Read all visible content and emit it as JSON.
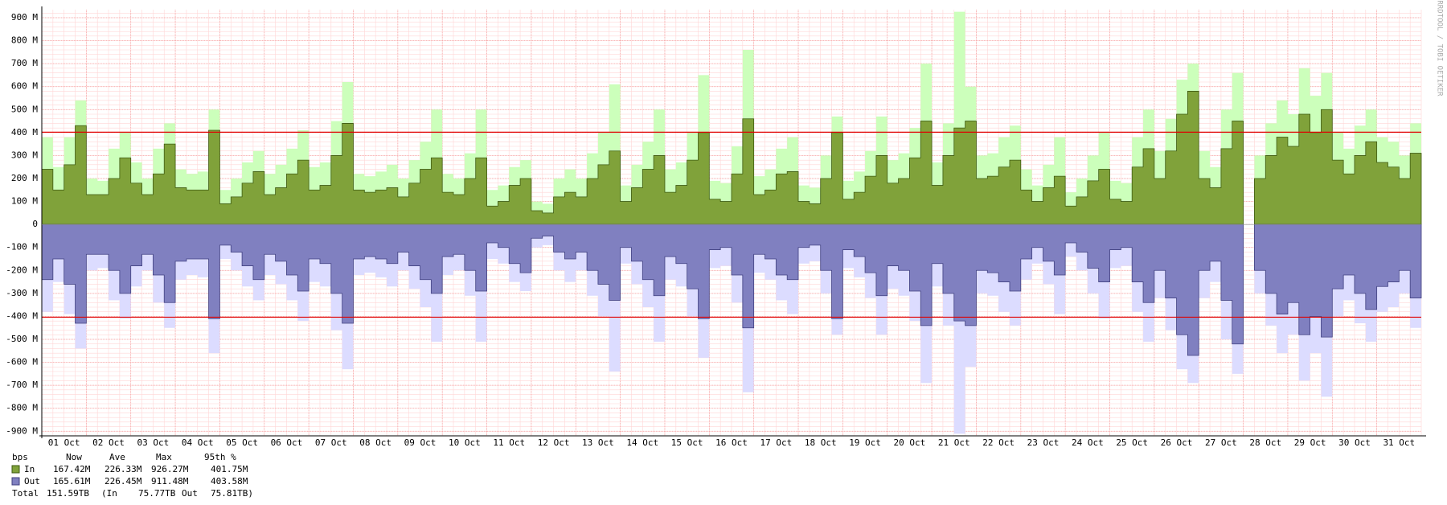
{
  "chart_data": {
    "type": "area",
    "categories": [
      "01 Oct",
      "02 Oct",
      "03 Oct",
      "04 Oct",
      "05 Oct",
      "06 Oct",
      "07 Oct",
      "08 Oct",
      "09 Oct",
      "10 Oct",
      "11 Oct",
      "12 Oct",
      "13 Oct",
      "14 Oct",
      "15 Oct",
      "16 Oct",
      "17 Oct",
      "18 Oct",
      "19 Oct",
      "20 Oct",
      "21 Oct",
      "22 Oct",
      "23 Oct",
      "24 Oct",
      "25 Oct",
      "26 Oct",
      "27 Oct",
      "28 Oct",
      "29 Oct",
      "30 Oct",
      "31 Oct"
    ],
    "ylim": [
      -920,
      935
    ],
    "yticks": [
      {
        "value": -900,
        "label": "-900 M"
      },
      {
        "value": -800,
        "label": "-800 M"
      },
      {
        "value": -700,
        "label": "-700 M"
      },
      {
        "value": -600,
        "label": "-600 M"
      },
      {
        "value": -500,
        "label": "-500 M"
      },
      {
        "value": -400,
        "label": "-400 M"
      },
      {
        "value": -300,
        "label": "-300 M"
      },
      {
        "value": -200,
        "label": "-200 M"
      },
      {
        "value": -100,
        "label": "-100 M"
      },
      0,
      {
        "value": 100,
        "label": "100 M"
      },
      {
        "value": 200,
        "label": "200 M"
      },
      {
        "value": 300,
        "label": "300 M"
      },
      {
        "value": 400,
        "label": "400 M"
      },
      {
        "value": 500,
        "label": "500 M"
      },
      {
        "value": 600,
        "label": "600 M"
      },
      {
        "value": 700,
        "label": "700 M"
      },
      {
        "value": 800,
        "label": "800 M"
      },
      {
        "value": 900,
        "label": "900 M"
      }
    ],
    "grid": true,
    "series": [
      {
        "color": "#ccffbb",
        "values": [
          [
            380,
            250,
            380,
            540
          ],
          [
            200,
            190,
            330,
            400
          ],
          [
            270,
            200,
            330,
            440
          ],
          [
            240,
            220,
            230,
            500
          ],
          [
            150,
            200,
            270,
            320
          ],
          [
            220,
            260,
            330,
            410
          ],
          [
            250,
            270,
            450,
            620
          ],
          [
            220,
            210,
            230,
            260
          ],
          [
            200,
            280,
            360,
            500
          ],
          [
            220,
            200,
            310,
            500
          ],
          [
            150,
            170,
            250,
            280
          ],
          [
            100,
            90,
            200,
            240
          ],
          [
            200,
            310,
            400,
            610
          ],
          [
            170,
            260,
            360,
            500
          ],
          [
            240,
            270,
            400,
            650
          ],
          [
            190,
            180,
            340,
            760
          ],
          [
            210,
            240,
            330,
            380
          ],
          [
            170,
            160,
            300,
            470
          ],
          [
            190,
            230,
            320,
            470
          ],
          [
            280,
            310,
            420,
            700
          ],
          [
            270,
            440,
            926,
            600
          ],
          [
            300,
            310,
            380,
            430
          ],
          [
            240,
            170,
            260,
            380
          ],
          [
            140,
            200,
            300,
            400
          ],
          [
            190,
            180,
            380,
            500
          ],
          [
            320,
            460,
            630,
            700
          ],
          [
            320,
            250,
            500,
            660
          ],
          [
            null,
            300,
            440,
            540
          ],
          [
            480,
            680,
            560,
            660
          ],
          [
            400,
            330,
            430,
            500
          ],
          [
            380,
            360,
            300,
            440
          ]
        ]
      },
      {
        "name": "In",
        "color": "#80a23a",
        "stroke": "#3d5a10",
        "values": [
          [
            240,
            150,
            260,
            430
          ],
          [
            130,
            130,
            200,
            290
          ],
          [
            180,
            130,
            220,
            350
          ],
          [
            160,
            150,
            150,
            410
          ],
          [
            90,
            120,
            180,
            230
          ],
          [
            130,
            160,
            220,
            280
          ],
          [
            150,
            170,
            300,
            440
          ],
          [
            150,
            140,
            150,
            160
          ],
          [
            120,
            180,
            240,
            290
          ],
          [
            140,
            130,
            200,
            290
          ],
          [
            80,
            100,
            170,
            200
          ],
          [
            60,
            50,
            120,
            140
          ],
          [
            120,
            200,
            260,
            320
          ],
          [
            100,
            160,
            240,
            300
          ],
          [
            140,
            170,
            280,
            400
          ],
          [
            110,
            100,
            220,
            460
          ],
          [
            130,
            150,
            220,
            230
          ],
          [
            100,
            90,
            200,
            400
          ],
          [
            110,
            140,
            210,
            300
          ],
          [
            180,
            200,
            290,
            450
          ],
          [
            170,
            300,
            420,
            450
          ],
          [
            200,
            210,
            250,
            280
          ],
          [
            150,
            100,
            160,
            210
          ],
          [
            80,
            120,
            190,
            240
          ],
          [
            110,
            100,
            250,
            330
          ],
          [
            200,
            320,
            480,
            580
          ],
          [
            200,
            160,
            330,
            450
          ],
          [
            null,
            200,
            300,
            380
          ],
          [
            340,
            480,
            400,
            500
          ],
          [
            280,
            220,
            300,
            360
          ],
          [
            270,
            250,
            200,
            310
          ]
        ],
        "stats": [
          "167.42M",
          "226.33M",
          "926.27M",
          "401.75M"
        ],
        "p95_line": 401.75
      },
      {
        "color": "#dcdcff",
        "values": [
          [
            -380,
            -250,
            -390,
            -540
          ],
          [
            -200,
            -190,
            -330,
            -410
          ],
          [
            -270,
            -200,
            -340,
            -450
          ],
          [
            -240,
            -220,
            -230,
            -560
          ],
          [
            -150,
            -200,
            -270,
            -330
          ],
          [
            -220,
            -260,
            -330,
            -420
          ],
          [
            -250,
            -270,
            -460,
            -630
          ],
          [
            -220,
            -210,
            -230,
            -270
          ],
          [
            -200,
            -280,
            -360,
            -510
          ],
          [
            -220,
            -200,
            -310,
            -510
          ],
          [
            -150,
            -170,
            -250,
            -290
          ],
          [
            -100,
            -90,
            -200,
            -250
          ],
          [
            -200,
            -310,
            -400,
            -640
          ],
          [
            -170,
            -260,
            -360,
            -510
          ],
          [
            -240,
            -270,
            -400,
            -580
          ],
          [
            -190,
            -180,
            -340,
            -730
          ],
          [
            -210,
            -240,
            -330,
            -390
          ],
          [
            -170,
            -160,
            -300,
            -480
          ],
          [
            -190,
            -230,
            -320,
            -480
          ],
          [
            -280,
            -310,
            -420,
            -690
          ],
          [
            -270,
            -440,
            -911,
            -620
          ],
          [
            -300,
            -310,
            -380,
            -440
          ],
          [
            -240,
            -170,
            -260,
            -390
          ],
          [
            -140,
            -200,
            -300,
            -410
          ],
          [
            -190,
            -180,
            -380,
            -510
          ],
          [
            -320,
            -460,
            -630,
            -690
          ],
          [
            -320,
            -250,
            -500,
            -650
          ],
          [
            null,
            -300,
            -440,
            -560
          ],
          [
            -480,
            -680,
            -560,
            -750
          ],
          [
            -400,
            -330,
            -430,
            -510
          ],
          [
            -380,
            -360,
            -300,
            -450
          ]
        ]
      },
      {
        "name": "Out",
        "color": "#8080c0",
        "stroke": "#404080",
        "values": [
          [
            -240,
            -150,
            -260,
            -430
          ],
          [
            -130,
            -130,
            -200,
            -300
          ],
          [
            -180,
            -130,
            -220,
            -340
          ],
          [
            -160,
            -150,
            -150,
            -410
          ],
          [
            -90,
            -120,
            -180,
            -240
          ],
          [
            -130,
            -160,
            -220,
            -290
          ],
          [
            -150,
            -170,
            -300,
            -430
          ],
          [
            -150,
            -140,
            -150,
            -170
          ],
          [
            -120,
            -180,
            -240,
            -300
          ],
          [
            -140,
            -130,
            -200,
            -290
          ],
          [
            -80,
            -100,
            -170,
            -210
          ],
          [
            -60,
            -50,
            -120,
            -150
          ],
          [
            -120,
            -200,
            -260,
            -330
          ],
          [
            -100,
            -160,
            -240,
            -310
          ],
          [
            -140,
            -170,
            -280,
            -410
          ],
          [
            -110,
            -100,
            -220,
            -450
          ],
          [
            -130,
            -150,
            -220,
            -240
          ],
          [
            -100,
            -90,
            -200,
            -410
          ],
          [
            -110,
            -140,
            -210,
            -310
          ],
          [
            -180,
            -200,
            -290,
            -440
          ],
          [
            -170,
            -300,
            -420,
            -440
          ],
          [
            -200,
            -210,
            -250,
            -290
          ],
          [
            -150,
            -100,
            -160,
            -220
          ],
          [
            -80,
            -120,
            -190,
            -250
          ],
          [
            -110,
            -100,
            -250,
            -340
          ],
          [
            -200,
            -320,
            -480,
            -570
          ],
          [
            -200,
            -160,
            -330,
            -520
          ],
          [
            null,
            -200,
            -300,
            -390
          ],
          [
            -340,
            -480,
            -400,
            -490
          ],
          [
            -280,
            -220,
            -300,
            -370
          ],
          [
            -270,
            -250,
            -200,
            -320
          ]
        ],
        "stats": [
          "165.61M",
          "226.45M",
          "911.48M",
          "403.58M"
        ],
        "p95_line": -403.58
      }
    ],
    "p95_color": "#e00000",
    "legend_header": [
      "bps",
      "Now",
      "Ave",
      "Max",
      "95th %"
    ],
    "total": [
      "Total",
      "151.59TB",
      "(In",
      "75.77TB",
      "Out",
      "75.81TB)"
    ],
    "side_text": "RRDTOOL / TOBI OETIKER"
  }
}
